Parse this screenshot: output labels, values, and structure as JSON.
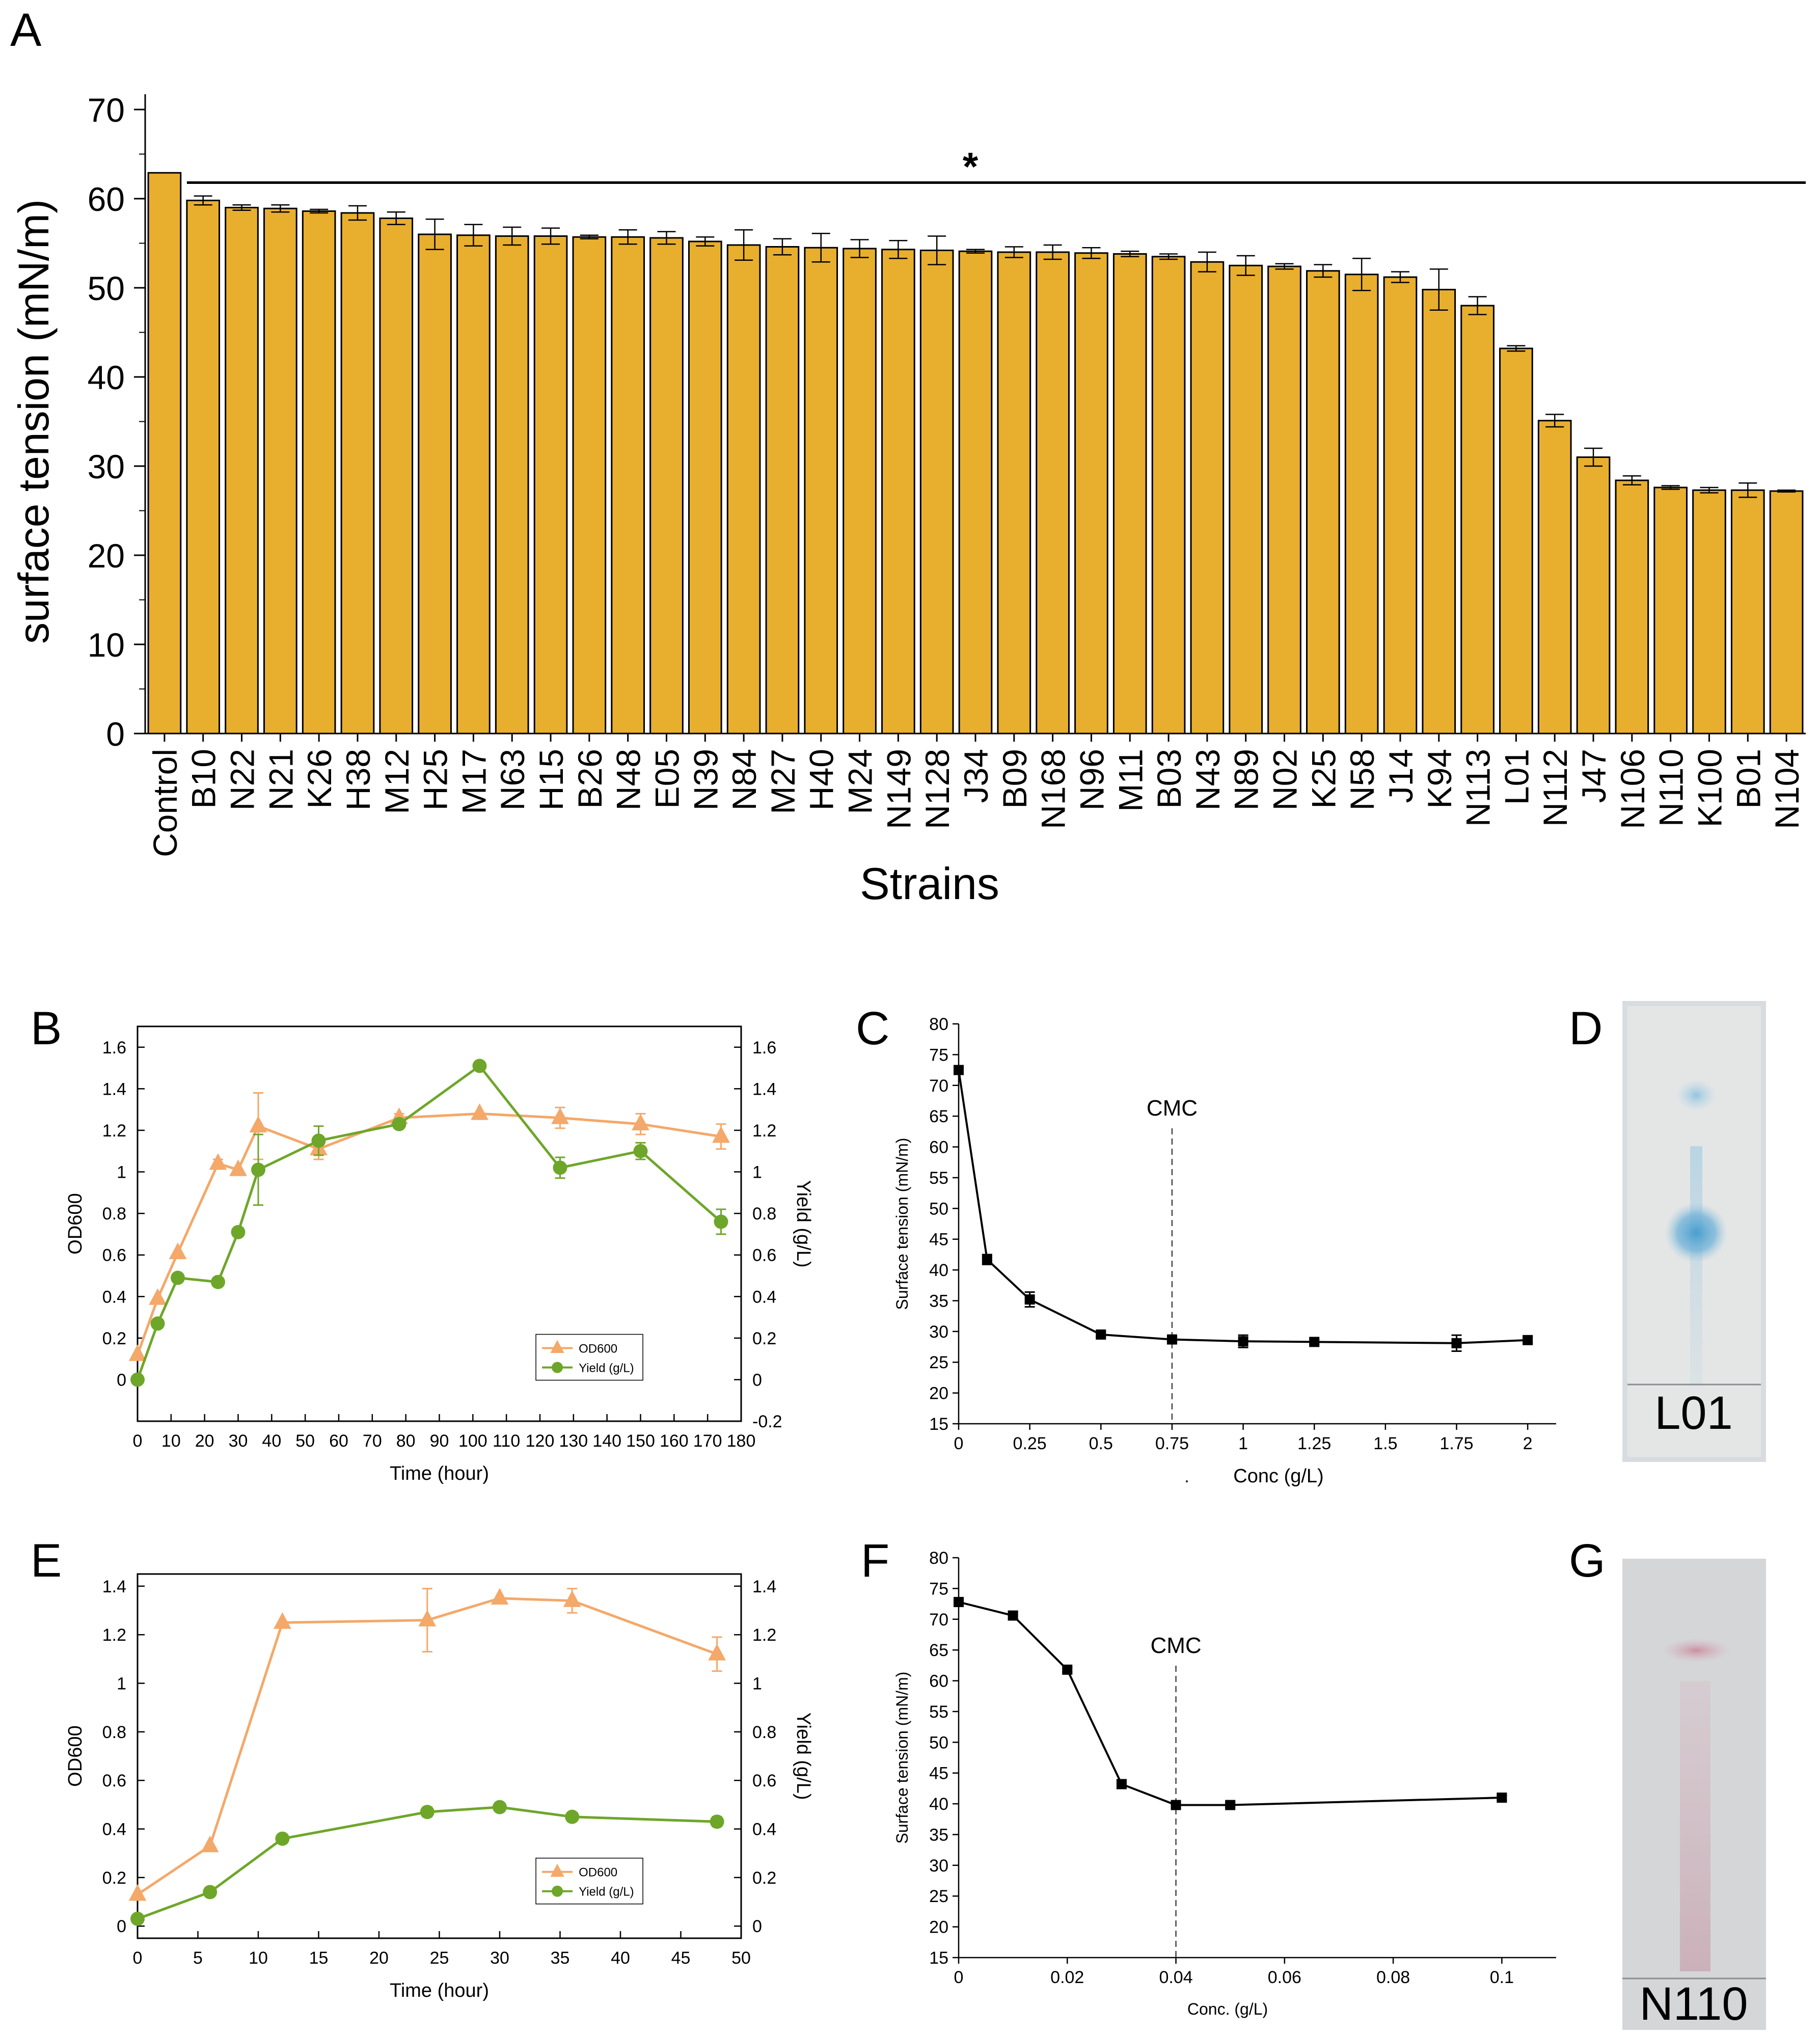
{
  "panel_letters": {
    "A": "A",
    "B": "B",
    "C": "C",
    "D": "D",
    "E": "E",
    "F": "F",
    "G": "G"
  },
  "colors": {
    "bar": "#E8AE2E",
    "od": "#F4A869",
    "yield": "#6EA62A",
    "ink": "#000000"
  },
  "chart_data": [
    {
      "id": "A",
      "type": "bar",
      "title": "",
      "xlabel": "Strains",
      "ylabel": "surface tension (mN/m)",
      "ylim": [
        0,
        70
      ],
      "yticks": [
        "0",
        "10",
        "20",
        "30",
        "40",
        "50",
        "60",
        "70"
      ],
      "significance_label": "*",
      "categories": [
        "Control",
        "B10",
        "N22",
        "N21",
        "K26",
        "H38",
        "M12",
        "H25",
        "M17",
        "N63",
        "H15",
        "B26",
        "N48",
        "E05",
        "N39",
        "N84",
        "M27",
        "H40",
        "M24",
        "N149",
        "N128",
        "J34",
        "B09",
        "N168",
        "N96",
        "M11",
        "B03",
        "N43",
        "N89",
        "N02",
        "K25",
        "N58",
        "J14",
        "K94",
        "N113",
        "L01",
        "N112",
        "J47",
        "N106",
        "N110",
        "K100",
        "B01",
        "N104"
      ],
      "values": [
        62.9,
        59.8,
        59.0,
        58.9,
        58.6,
        58.4,
        57.8,
        56.0,
        55.9,
        55.8,
        55.8,
        55.7,
        55.7,
        55.6,
        55.2,
        54.8,
        54.6,
        54.5,
        54.4,
        54.3,
        54.2,
        54.1,
        54.0,
        54.0,
        53.9,
        53.8,
        53.5,
        52.9,
        52.5,
        52.4,
        51.9,
        51.5,
        51.2,
        49.8,
        48.0,
        43.2,
        35.1,
        31.0,
        28.4,
        27.6,
        27.3,
        27.3,
        27.2
      ],
      "errors": [
        0,
        0.5,
        0.3,
        0.4,
        0.2,
        0.8,
        0.7,
        1.7,
        1.2,
        1.0,
        0.9,
        0.2,
        0.8,
        0.7,
        0.5,
        1.7,
        0.9,
        1.6,
        1.0,
        1.0,
        1.6,
        0.2,
        0.6,
        0.8,
        0.6,
        0.3,
        0.3,
        1.1,
        1.1,
        0.3,
        0.7,
        1.8,
        0.6,
        2.3,
        1.0,
        0.3,
        0.7,
        1.0,
        0.5,
        0.2,
        0.3,
        0.8,
        0.1
      ]
    },
    {
      "id": "B",
      "type": "line",
      "xlabel": "Time (hour)",
      "ylabel": "OD600",
      "y2label": "Yield (g/L)",
      "xlim": [
        0,
        180
      ],
      "ylim": [
        -0.2,
        1.7
      ],
      "xticks": [
        "0",
        "10",
        "20",
        "30",
        "40",
        "50",
        "60",
        "70",
        "80",
        "90",
        "100",
        "110",
        "120",
        "130",
        "140",
        "150",
        "160",
        "170",
        "180"
      ],
      "yticks": [
        "0",
        "0.2",
        "0.4",
        "0.6",
        "0.8",
        "1",
        "1.2",
        "1.4",
        "1.6"
      ],
      "y2ticks": [
        "-0.2",
        "0",
        "0.2",
        "0.4",
        "0.6",
        "0.8",
        "1",
        "1.2",
        "1.4",
        "1.6"
      ],
      "legend": [
        "OD600",
        "Yield (g/L)"
      ],
      "series": [
        {
          "name": "OD600",
          "x": [
            0,
            6,
            12,
            24,
            30,
            36,
            54,
            78,
            102,
            126,
            150,
            174
          ],
          "values": [
            0.12,
            0.39,
            0.61,
            1.04,
            1.01,
            1.22,
            1.11,
            1.26,
            1.28,
            1.26,
            1.23,
            1.17
          ],
          "errors": [
            0,
            0,
            0,
            0.02,
            0,
            0.16,
            0.05,
            0.02,
            0,
            0.05,
            0.05,
            0.06
          ]
        },
        {
          "name": "Yield (g/L)",
          "x": [
            0,
            6,
            12,
            24,
            30,
            36,
            54,
            78,
            102,
            126,
            150,
            174
          ],
          "values": [
            0,
            0.27,
            0.49,
            0.47,
            0.71,
            1.01,
            1.15,
            1.23,
            1.51,
            1.02,
            1.1,
            0.76
          ],
          "errors": [
            0,
            0,
            0,
            0,
            0,
            0.17,
            0.07,
            0,
            0,
            0.05,
            0.04,
            0.06
          ]
        }
      ]
    },
    {
      "id": "C",
      "type": "line",
      "xlabel": "Conc  (g/L)",
      "xlabel_prefix": ".",
      "ylabel": "Surface tension (mN/m)",
      "xlim": [
        0,
        2.1
      ],
      "ylim": [
        15,
        80
      ],
      "xticks": [
        "0",
        "0.25",
        "0.5",
        "0.75",
        "1",
        "1.25",
        "1.5",
        "1.75",
        "2"
      ],
      "yticks": [
        "15",
        "20",
        "25",
        "30",
        "35",
        "40",
        "45",
        "50",
        "55",
        "60",
        "65",
        "70",
        "75",
        "80"
      ],
      "annotation": "CMC",
      "cmc_x": 0.75,
      "series": [
        {
          "name": "surface tension",
          "x": [
            0,
            0.1,
            0.25,
            0.5,
            0.75,
            1,
            1.25,
            1.75,
            2
          ],
          "values": [
            72.5,
            41.7,
            35.2,
            29.5,
            28.7,
            28.4,
            28.3,
            28.1,
            28.6
          ],
          "errors": [
            0,
            0.8,
            1.2,
            0.4,
            0.4,
            1.0,
            0.4,
            1.3,
            0.5
          ]
        }
      ]
    },
    {
      "id": "E",
      "type": "line",
      "xlabel": "Time (hour)",
      "ylabel": "OD600",
      "y2label": "Yield (g/L)",
      "xlim": [
        0,
        50
      ],
      "ylim": [
        -0.05,
        1.45
      ],
      "xticks": [
        "0",
        "5",
        "10",
        "15",
        "20",
        "25",
        "30",
        "35",
        "40",
        "45",
        "50"
      ],
      "yticks": [
        "0",
        "0.2",
        "0.4",
        "0.6",
        "0.8",
        "1",
        "1.2",
        "1.4"
      ],
      "y2ticks": [
        "0",
        "0.2",
        "0.4",
        "0.6",
        "0.8",
        "1",
        "1.2",
        "1.4"
      ],
      "legend": [
        "OD600",
        "Yield (g/L)"
      ],
      "series": [
        {
          "name": "OD600",
          "x": [
            0,
            6,
            12,
            24,
            30,
            36,
            48
          ],
          "values": [
            0.13,
            0.33,
            1.25,
            1.26,
            1.35,
            1.34,
            1.12
          ],
          "errors": [
            0,
            0,
            0,
            0.13,
            0,
            0.05,
            0.07
          ]
        },
        {
          "name": "Yield (g/L)",
          "x": [
            0,
            6,
            12,
            24,
            30,
            36,
            48
          ],
          "values": [
            0.03,
            0.14,
            0.36,
            0.47,
            0.49,
            0.45,
            0.43
          ],
          "errors": [
            0,
            0,
            0,
            0.02,
            0,
            0,
            0.02
          ]
        }
      ]
    },
    {
      "id": "F",
      "type": "line",
      "xlabel": "Conc. (g/L)",
      "ylabel": "Surface tension (mN/m)",
      "xlim": [
        0,
        0.11
      ],
      "ylim": [
        15,
        80
      ],
      "xticks": [
        "0",
        "0.02",
        "0.04",
        "0.06",
        "0.08",
        "0.1"
      ],
      "yticks": [
        "15",
        "20",
        "25",
        "30",
        "35",
        "40",
        "45",
        "50",
        "55",
        "60",
        "65",
        "70",
        "75",
        "80"
      ],
      "annotation": "CMC",
      "cmc_x": 0.04,
      "series": [
        {
          "name": "surface tension",
          "x": [
            0,
            0.01,
            0.02,
            0.03,
            0.04,
            0.05,
            0.1
          ],
          "values": [
            72.8,
            70.6,
            61.8,
            43.2,
            39.8,
            39.8,
            41.0
          ],
          "errors": [
            0,
            0.6,
            0.4,
            0.7,
            0.5,
            0.4,
            0.4
          ]
        }
      ]
    }
  ],
  "plates": [
    {
      "id": "D",
      "label": "L01",
      "type": "tlc-plate",
      "spot_color": "blue"
    },
    {
      "id": "G",
      "label": "N110",
      "type": "tlc-plate",
      "spot_color": "pink"
    }
  ]
}
